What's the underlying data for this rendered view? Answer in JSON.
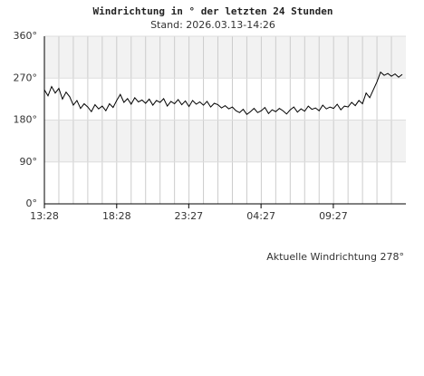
{
  "chart_data": {
    "type": "line",
    "title": "Windrichtung in ° der letzten 24 Stunden",
    "subtitle": "Stand: 2026.03.13-14:26",
    "annotation": "Aktuelle Windrichtung 278°",
    "x": [
      0,
      0.25,
      0.5,
      0.75,
      1,
      1.25,
      1.5,
      1.75,
      2,
      2.25,
      2.5,
      2.75,
      3,
      3.25,
      3.5,
      3.75,
      4,
      4.25,
      4.5,
      4.75,
      5,
      5.25,
      5.5,
      5.75,
      6,
      6.25,
      6.5,
      6.75,
      7,
      7.25,
      7.5,
      7.75,
      8,
      8.25,
      8.5,
      8.75,
      9,
      9.25,
      9.5,
      9.75,
      10,
      10.25,
      10.5,
      10.75,
      11,
      11.25,
      11.5,
      11.75,
      12,
      12.25,
      12.5,
      12.75,
      13,
      13.25,
      13.5,
      13.75,
      14,
      14.25,
      14.5,
      14.75,
      15,
      15.25,
      15.5,
      15.75,
      16,
      16.25,
      16.5,
      16.75,
      17,
      17.25,
      17.5,
      17.75,
      18,
      18.25,
      18.5,
      18.75,
      19,
      19.25,
      19.5,
      19.75,
      20,
      20.25,
      20.5,
      20.75,
      21,
      21.25,
      21.5,
      21.75,
      22,
      22.25,
      22.5,
      22.75,
      23,
      23.25,
      23.5,
      23.75,
      24,
      24.25,
      24.5,
      24.75
    ],
    "series": [
      {
        "name": "Windrichtung",
        "color": "#000000",
        "values": [
          245,
          232,
          252,
          238,
          248,
          225,
          240,
          230,
          212,
          222,
          205,
          215,
          208,
          198,
          213,
          204,
          210,
          200,
          215,
          207,
          222,
          235,
          218,
          226,
          214,
          228,
          219,
          223,
          216,
          225,
          212,
          222,
          218,
          226,
          210,
          220,
          215,
          224,
          213,
          221,
          209,
          222,
          214,
          219,
          212,
          220,
          208,
          216,
          213,
          206,
          211,
          204,
          208,
          200,
          196,
          203,
          192,
          198,
          205,
          196,
          200,
          207,
          194,
          202,
          198,
          205,
          200,
          193,
          202,
          208,
          197,
          204,
          199,
          210,
          203,
          206,
          200,
          212,
          204,
          208,
          205,
          214,
          202,
          210,
          208,
          218,
          211,
          222,
          215,
          238,
          228,
          245,
          262,
          283,
          276,
          280,
          274,
          279,
          272,
          278
        ]
      }
    ],
    "xlim": [
      0,
      25
    ],
    "xticks": [
      {
        "value": 0,
        "label": "13:28"
      },
      {
        "value": 5,
        "label": "18:28"
      },
      {
        "value": 9.983,
        "label": "23:27"
      },
      {
        "value": 14.983,
        "label": "04:27"
      },
      {
        "value": 19.983,
        "label": "09:27"
      }
    ],
    "xminorticks": [
      1,
      2,
      3,
      4,
      5,
      6,
      7,
      8,
      9,
      10,
      11,
      12,
      13,
      14,
      15,
      16,
      17,
      18,
      19,
      20,
      21,
      22,
      23,
      24
    ],
    "ylim": [
      0,
      360
    ],
    "yticks": [
      {
        "value": 0,
        "label": "0°"
      },
      {
        "value": 90,
        "label": "90°"
      },
      {
        "value": 180,
        "label": "180°"
      },
      {
        "value": 270,
        "label": "270°"
      },
      {
        "value": 360,
        "label": "360°"
      }
    ],
    "grid": true
  }
}
